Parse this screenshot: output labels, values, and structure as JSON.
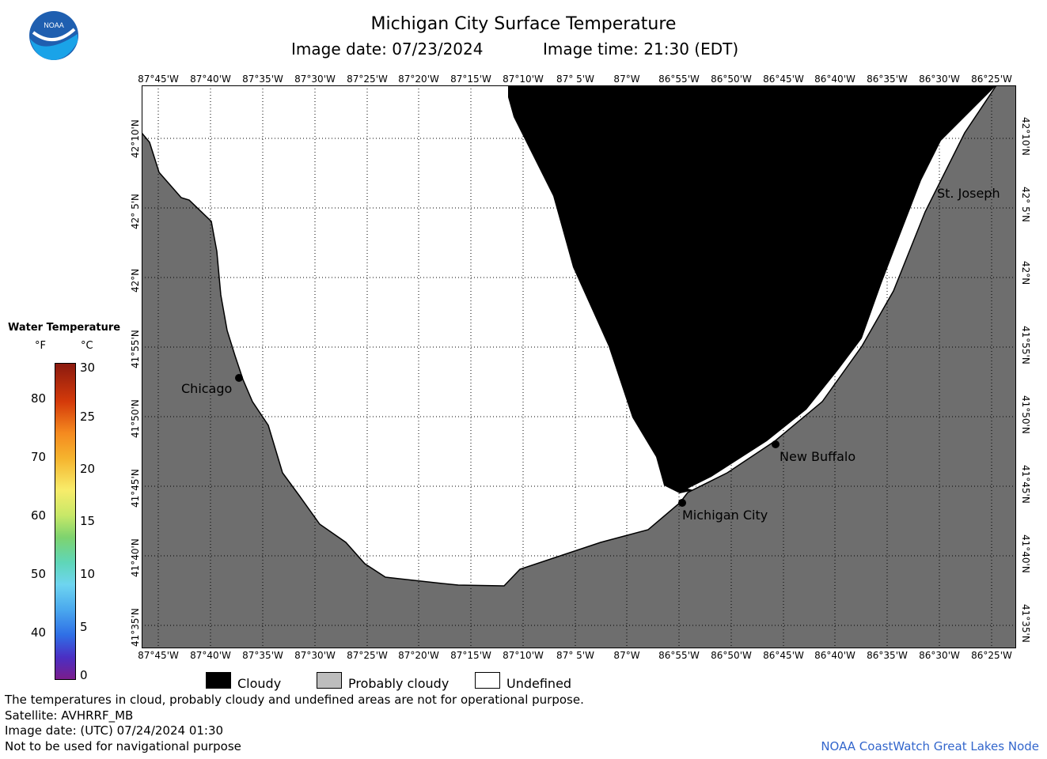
{
  "header": {
    "title": "Michigan City Surface Temperature",
    "image_date": "Image date: 07/23/2024",
    "image_time": "Image time: 21:30 (EDT)"
  },
  "logo": {
    "text": "NOAA",
    "icon": "noaa-logo"
  },
  "map": {
    "lon_labels": [
      "87°45'W",
      "87°40'W",
      "87°35'W",
      "87°30'W",
      "87°25'W",
      "87°20'W",
      "87°15'W",
      "87°10'W",
      "87° 5'W",
      "87°W",
      "86°55'W",
      "86°50'W",
      "86°45'W",
      "86°40'W",
      "86°35'W",
      "86°30'W",
      "86°25'W"
    ],
    "lat_labels": [
      "42°10'N",
      "42° 5'N",
      "42°N",
      "41°55'N",
      "41°50'N",
      "41°45'N",
      "41°40'N",
      "41°35'N"
    ],
    "places": [
      {
        "name": "Chicago"
      },
      {
        "name": "Michigan City"
      },
      {
        "name": "New Buffalo"
      },
      {
        "name": "St. Joseph"
      }
    ],
    "colors": {
      "cloudy": "#000000",
      "land": "#6e6e6e",
      "undefined": "#ffffff",
      "grid": "#000000"
    }
  },
  "legend": {
    "title": "Water Temperature",
    "unit_f": "°F",
    "unit_c": "°C",
    "f_ticks": [
      "80",
      "70",
      "60",
      "50",
      "40"
    ],
    "c_ticks": [
      "30",
      "25",
      "20",
      "15",
      "10",
      "5",
      "0"
    ]
  },
  "key": {
    "cloudy": "Cloudy",
    "probably_cloudy": "Probably cloudy",
    "undefined": "Undefined"
  },
  "footer": {
    "line1": "The temperatures in cloud, probably cloudy and undefined areas are not for operational purpose.",
    "line2": "Satellite: AVHRRF_MB",
    "line3": "Image date: (UTC) 07/24/2024  01:30",
    "line4": "Not to be used for navigational purpose",
    "credit": "NOAA CoastWatch Great Lakes Node"
  }
}
